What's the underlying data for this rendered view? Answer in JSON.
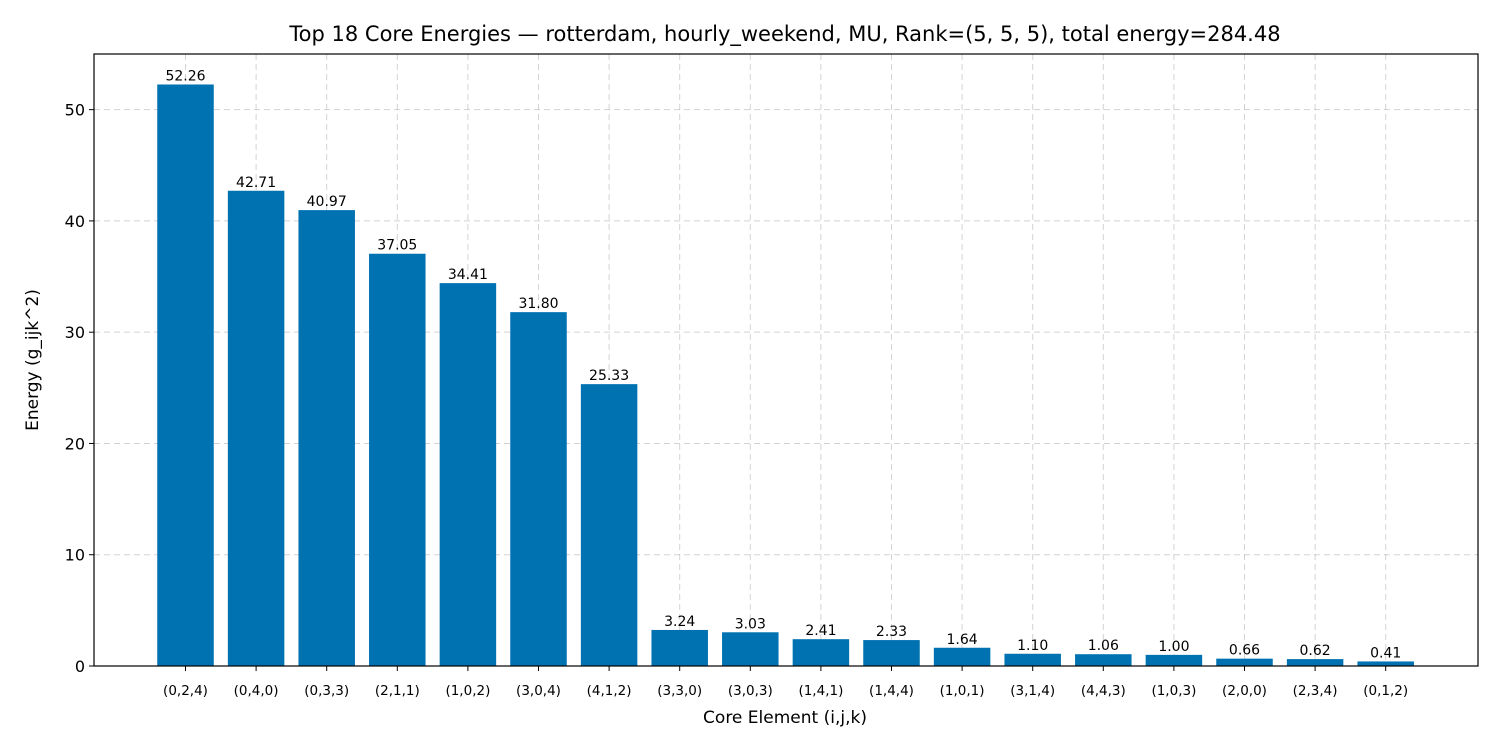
{
  "chart_data": {
    "type": "bar",
    "title": "Top 18 Core Energies — rotterdam, hourly_weekend, MU, Rank=(5, 5, 5), total energy=284.48",
    "xlabel": "Core Element (i,j,k)",
    "ylabel": "Energy (g_ijk^2)",
    "ylim": [
      0,
      55
    ],
    "yticks": [
      0,
      10,
      20,
      30,
      40,
      50
    ],
    "grid": true,
    "bar_color": "#0072b2",
    "categories": [
      "(0,2,4)",
      "(0,4,0)",
      "(0,3,3)",
      "(2,1,1)",
      "(1,0,2)",
      "(3,0,4)",
      "(4,1,2)",
      "(3,3,0)",
      "(3,0,3)",
      "(1,4,1)",
      "(1,4,4)",
      "(1,0,1)",
      "(3,1,4)",
      "(4,4,3)",
      "(1,0,3)",
      "(2,0,0)",
      "(2,3,4)",
      "(0,1,2)"
    ],
    "values": [
      52.26,
      42.71,
      40.97,
      37.05,
      34.41,
      31.8,
      25.33,
      3.24,
      3.03,
      2.41,
      2.33,
      1.64,
      1.1,
      1.06,
      1.0,
      0.66,
      0.62,
      0.41
    ],
    "value_labels": [
      "52.26",
      "42.71",
      "40.97",
      "37.05",
      "34.41",
      "31.80",
      "25.33",
      "3.24",
      "3.03",
      "2.41",
      "2.33",
      "1.64",
      "1.10",
      "1.06",
      "1.00",
      "0.66",
      "0.62",
      "0.41"
    ]
  }
}
